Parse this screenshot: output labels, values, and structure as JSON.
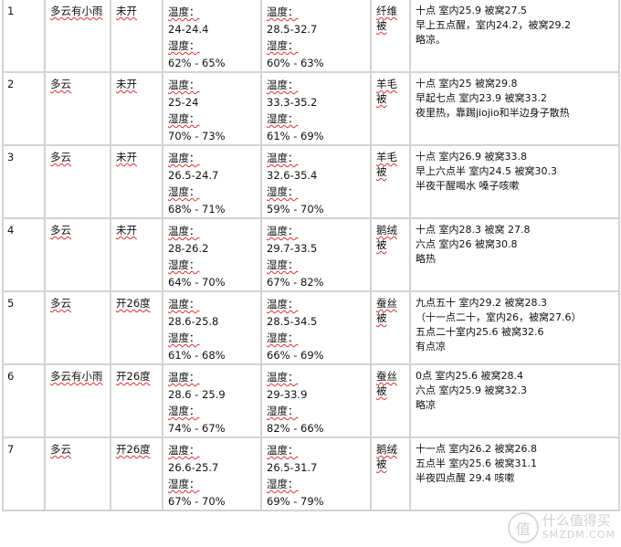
{
  "rows": [
    {
      "no": "1",
      "weather": "多云有小雨",
      "ac": "未开",
      "room": {
        "temp_label": "温度：",
        "temp": "24-24.4",
        "hum_label": "湿度：",
        "hum": "62% - 65%"
      },
      "quilt_env": {
        "temp_label": "温度：",
        "temp": "28.5-32.7",
        "hum_label": "湿度：",
        "hum": "60% - 63%"
      },
      "quilt": "纤维被",
      "notes": [
        "十点 室内25.9 被窝27.5",
        "早上五点醒，室内24.2，被窝29.2",
        " 略凉。"
      ]
    },
    {
      "no": "2",
      "weather": "多云",
      "ac": "未开",
      "room": {
        "temp_label": "温度：",
        "temp": "25-24",
        "hum_label": "湿度：",
        "hum": "70% - 73%"
      },
      "quilt_env": {
        "temp_label": "温度：",
        "temp": "33.3-35.2",
        "hum_label": "湿度：",
        "hum": "61% - 69%"
      },
      "quilt": "羊毛被",
      "notes": [
        "十点 室内25 被窝29.8",
        "早起七点 室内23.9 被窝33.2",
        "夜里热，靠踢jiojio和半边身子散热"
      ]
    },
    {
      "no": "3",
      "weather": "多云",
      "ac": "未开",
      "room": {
        "temp_label": "温度：",
        "temp": "26.5-24.7",
        "hum_label": "湿度：",
        "hum": "68% - 71%"
      },
      "quilt_env": {
        "temp_label": "温度：",
        "temp": "32.6-35.4",
        "hum_label": "湿度：",
        "hum": "59% - 70%"
      },
      "quilt": "羊毛被",
      "notes": [
        "十点 室内26.9 被窝33.8",
        "早上六点半 室内24.5 被窝30.3",
        "半夜干醒喝水 嗓子咳嗽"
      ]
    },
    {
      "no": "4",
      "weather": "多云",
      "ac": "未开",
      "room": {
        "temp_label": "温度：",
        "temp": "28-26.2",
        "hum_label": "湿度：",
        "hum": "64% - 70%"
      },
      "quilt_env": {
        "temp_label": "温度：",
        "temp": "29.7-33.5",
        "hum_label": "湿度：",
        "hum": "67% - 82%"
      },
      "quilt": "鹅绒被",
      "notes": [
        "十点 室内28.3 被窝 27.8",
        "六点 室内26  被窝30.8",
        "略热"
      ]
    },
    {
      "no": "5",
      "weather": "多云",
      "ac": "开26度",
      "room": {
        "temp_label": "温度：",
        "temp": "28.6-25.8",
        "hum_label": "湿度：",
        "hum": "61% - 68%"
      },
      "quilt_env": {
        "temp_label": "温度：",
        "temp": "28.5-34.5",
        "hum_label": "湿度：",
        "hum": "66% - 69%"
      },
      "quilt": "蚕丝被",
      "notes": [
        "九点五十 室内29.2 被窝28.3",
        "（十一点二十，室内26，被窝27.6）",
        " 五点二十室内25.6 被窝32.6",
        "有点凉"
      ]
    },
    {
      "no": "6",
      "weather": "多云有小雨",
      "ac": "开26度",
      "room": {
        "temp_label": "温度：",
        "temp": "28.6 - 25.9",
        "hum_label": "湿度：",
        "hum": "74% - 67%"
      },
      "quilt_env": {
        "temp_label": "温度：",
        "temp": "29-33.9",
        "hum_label": "湿度：",
        "hum": "82% - 66%"
      },
      "quilt": "蚕丝被",
      "notes": [
        "0点 室内25.6 被窝28.4",
        "六点 室内25.9 被窝32.3",
        "略凉"
      ]
    },
    {
      "no": "7",
      "weather": "多云",
      "ac": "开26度",
      "room": {
        "temp_label": "温度：",
        "temp": "26.6-25.7",
        "hum_label": "湿度：",
        "hum": "67% - 70%"
      },
      "quilt_env": {
        "temp_label": "温度：",
        "temp": "26.5-31.7",
        "hum_label": "湿度：",
        "hum": "69% - 79%"
      },
      "quilt": "鹅绒被",
      "notes": [
        "十一点 室内26.2 被窝26.8",
        "五点半 室内25.6 被窝31.1",
        "半夜四点醒 29.4 咳嗽"
      ]
    }
  ],
  "watermark": {
    "name": "什么值得买",
    "domain": "SMZDM.COM",
    "logo_char": "值"
  },
  "colors": {
    "border": "#d4d4d4",
    "spellcheck_underline": "#e03030"
  }
}
